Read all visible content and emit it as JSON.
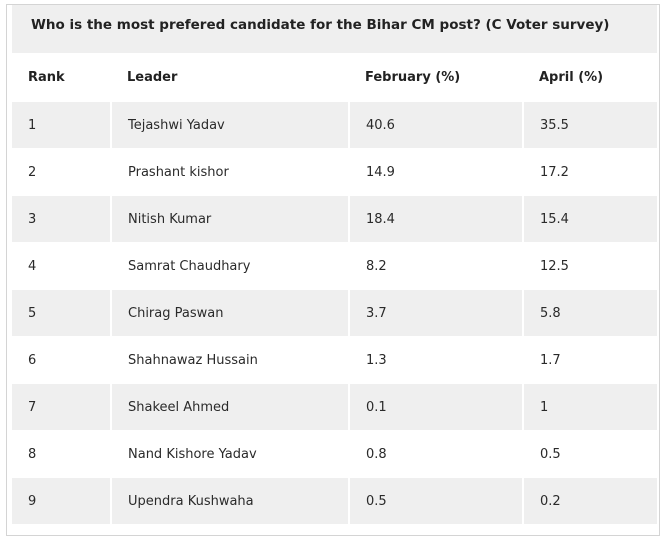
{
  "title": "Who is the most prefered candidate for the Bihar CM post? (C Voter survey)",
  "table": {
    "headers": {
      "rank": "Rank",
      "leader": "Leader",
      "february": "February (%)",
      "april": "April (%)"
    },
    "rows": [
      {
        "rank": "1",
        "leader": "Tejashwi Yadav",
        "february": "40.6",
        "april": "35.5"
      },
      {
        "rank": "2",
        "leader": "Prashant kishor",
        "february": "14.9",
        "april": "17.2"
      },
      {
        "rank": "3",
        "leader": "Nitish Kumar",
        "february": "18.4",
        "april": "15.4"
      },
      {
        "rank": "4",
        "leader": "Samrat Chaudhary",
        "february": "8.2",
        "april": "12.5"
      },
      {
        "rank": "5",
        "leader": "Chirag Paswan",
        "february": "3.7",
        "april": "5.8"
      },
      {
        "rank": "6",
        "leader": "Shahnawaz Hussain",
        "february": "1.3",
        "april": "1.7"
      },
      {
        "rank": "7",
        "leader": "Shakeel Ahmed",
        "february": "0.1",
        "april": "1"
      },
      {
        "rank": "8",
        "leader": "Nand Kishore Yadav",
        "february": "0.8",
        "april": "0.5"
      },
      {
        "rank": "9",
        "leader": "Upendra Kushwaha",
        "february": "0.5",
        "april": "0.2"
      }
    ]
  }
}
